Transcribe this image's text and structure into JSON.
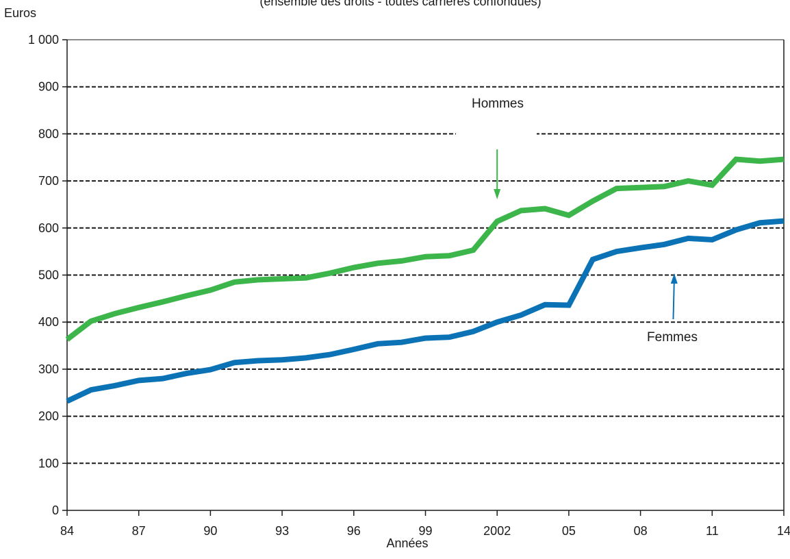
{
  "chart_data": {
    "type": "line",
    "subtitle": "(ensemble des droits - toutes carrières confondues)",
    "ylabel": "Euros",
    "xlabel": "Années",
    "ylim": [
      0,
      1000
    ],
    "xlim": [
      1984,
      2014
    ],
    "y_ticks": [
      0,
      100,
      200,
      300,
      400,
      500,
      600,
      700,
      800,
      900,
      1000
    ],
    "y_tick_labels": [
      "0",
      "100",
      "200",
      "300",
      "400",
      "500",
      "600",
      "700",
      "800",
      "900",
      "1 000"
    ],
    "x_ticks": [
      1984,
      1987,
      1990,
      1993,
      1996,
      1999,
      2002,
      2005,
      2008,
      2011,
      2014
    ],
    "x_tick_labels": [
      "84",
      "87",
      "90",
      "93",
      "96",
      "99",
      "2002",
      "05",
      "08",
      "11",
      "14"
    ],
    "grid": "horizontal-dashed",
    "x": [
      1984,
      1985,
      1986,
      1987,
      1988,
      1989,
      1990,
      1991,
      1992,
      1993,
      1994,
      1995,
      1996,
      1997,
      1998,
      1999,
      2000,
      2001,
      2002,
      2003,
      2004,
      2005,
      2006,
      2007,
      2008,
      2009,
      2010,
      2011,
      2012,
      2013,
      2014
    ],
    "series": [
      {
        "name": "Hommes",
        "color": "#3cb54a",
        "values": [
          363,
          402,
          418,
          431,
          443,
          456,
          468,
          485,
          490,
          492,
          494,
          504,
          516,
          525,
          530,
          539,
          541,
          553,
          614,
          637,
          641,
          627,
          657,
          684,
          686,
          688,
          700,
          691,
          746,
          742,
          746
        ]
      },
      {
        "name": "Femmes",
        "color": "#0a72b5",
        "values": [
          232,
          256,
          265,
          276,
          280,
          291,
          299,
          314,
          318,
          320,
          324,
          331,
          342,
          354,
          357,
          366,
          368,
          380,
          400,
          415,
          437,
          436,
          533,
          550,
          558,
          565,
          578,
          575,
          596,
          611,
          615
        ]
      }
    ],
    "annotations": [
      {
        "text": "Hommes",
        "series": "Hommes",
        "arrow_year": 2002
      },
      {
        "text": "Femmes",
        "series": "Femmes",
        "arrow_year": 2009.4
      }
    ]
  }
}
